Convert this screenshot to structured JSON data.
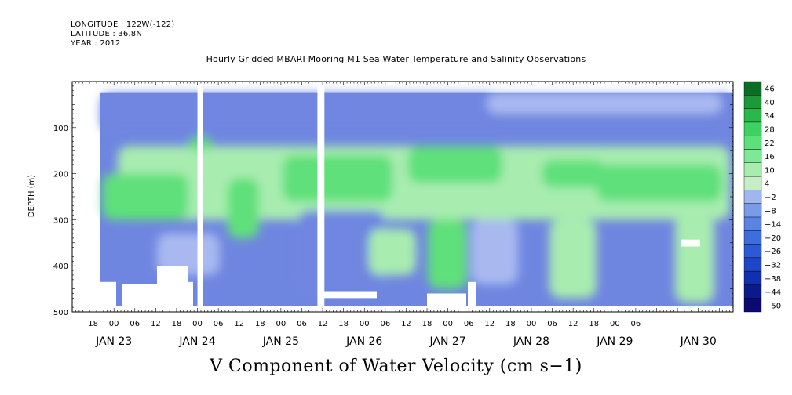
{
  "header": {
    "longitude": "LONGITUDE : 122W(-122)",
    "latitude": "LATITUDE : 36.8N",
    "year": "YEAR : 2012",
    "title": "Hourly Gridded MBARI Mooring M1 Sea Water Temperature and Salinity Observations"
  },
  "bottom_title": "V Component of Water Velocity (cm s−1)",
  "colors": {
    "strong_neg": "#0a1a8a",
    "neg": "#6f86e0",
    "weak_neg": "#a9b9f0",
    "weak_pos": "#a8ecb0",
    "pos": "#5fe07a",
    "strong_pos": "#1aa83e"
  },
  "chart_data": {
    "type": "heatmap",
    "title": "Hourly Gridded MBARI Mooring M1 Sea Water Temperature and Salinity Observations",
    "subtitle": "V Component of Water Velocity (cm s−1)",
    "ylabel": "DEPTH (m)",
    "xlabel": "",
    "y_axis": {
      "range": [
        500,
        0
      ],
      "reversed": true,
      "ticks": [
        100,
        200,
        300,
        400,
        500
      ]
    },
    "x_axis": {
      "start": "2012-01-22T12:00",
      "end": "2012-01-30T10:00",
      "hour_ticks": [
        {
          "t": "2012-01-22T18:00",
          "label": "18"
        },
        {
          "t": "2012-01-23T00:00",
          "label": "00"
        },
        {
          "t": "2012-01-23T06:00",
          "label": "06"
        },
        {
          "t": "2012-01-23T12:00",
          "label": "12"
        },
        {
          "t": "2012-01-23T18:00",
          "label": "18"
        },
        {
          "t": "2012-01-24T00:00",
          "label": "00"
        },
        {
          "t": "2012-01-24T06:00",
          "label": "06"
        },
        {
          "t": "2012-01-24T12:00",
          "label": "12"
        },
        {
          "t": "2012-01-24T18:00",
          "label": "18"
        },
        {
          "t": "2012-01-25T00:00",
          "label": "00"
        },
        {
          "t": "2012-01-25T06:00",
          "label": "06"
        },
        {
          "t": "2012-01-25T12:00",
          "label": "12"
        },
        {
          "t": "2012-01-25T18:00",
          "label": "18"
        },
        {
          "t": "2012-01-26T00:00",
          "label": "00"
        },
        {
          "t": "2012-01-26T06:00",
          "label": "06"
        },
        {
          "t": "2012-01-26T12:00",
          "label": "12"
        },
        {
          "t": "2012-01-26T18:00",
          "label": "18"
        },
        {
          "t": "2012-01-27T00:00",
          "label": "00"
        },
        {
          "t": "2012-01-27T06:00",
          "label": "06"
        },
        {
          "t": "2012-01-27T12:00",
          "label": "12"
        },
        {
          "t": "2012-01-27T18:00",
          "label": "18"
        },
        {
          "t": "2012-01-28T00:00",
          "label": "00"
        },
        {
          "t": "2012-01-28T06:00",
          "label": "06"
        },
        {
          "t": "2012-01-28T12:00",
          "label": "12"
        },
        {
          "t": "2012-01-28T18:00",
          "label": "18"
        },
        {
          "t": "2012-01-29T00:00",
          "label": "00"
        },
        {
          "t": "2012-01-29T06:00",
          "label": "06"
        }
      ],
      "date_labels": [
        {
          "t": "2012-01-23T00:00",
          "label": "JAN 23"
        },
        {
          "t": "2012-01-24T00:00",
          "label": "JAN 24"
        },
        {
          "t": "2012-01-25T00:00",
          "label": "JAN 25"
        },
        {
          "t": "2012-01-26T00:00",
          "label": "JAN 26"
        },
        {
          "t": "2012-01-27T00:00",
          "label": "JAN 27"
        },
        {
          "t": "2012-01-28T00:00",
          "label": "JAN 28"
        },
        {
          "t": "2012-01-29T00:00",
          "label": "JAN 29"
        },
        {
          "t": "2012-01-30T00:00",
          "label": "JAN 30"
        }
      ]
    },
    "colorbar": {
      "levels": [
        -50,
        -44,
        -38,
        -32,
        -26,
        -20,
        -14,
        -8,
        -2,
        4,
        10,
        16,
        22,
        28,
        34,
        40,
        46
      ],
      "labels": [
        "46",
        "40",
        "34",
        "28",
        "22",
        "16",
        "10",
        "4",
        "−2",
        "−8",
        "−14",
        "−20",
        "−26",
        "−32",
        "−38",
        "−44",
        "−50"
      ]
    },
    "data_gaps": [
      {
        "from": "2012-01-24T00:00",
        "to": "2012-01-24T01:30"
      },
      {
        "from": "2012-01-25T10:30",
        "to": "2012-01-25T12:30"
      }
    ],
    "summary": "Mostly weak northward flow (about 4 to 22 cm/s) between 150 and 300 m, with southward flow (about -2 to -20 cm/s) near the surface and below 300 m."
  }
}
